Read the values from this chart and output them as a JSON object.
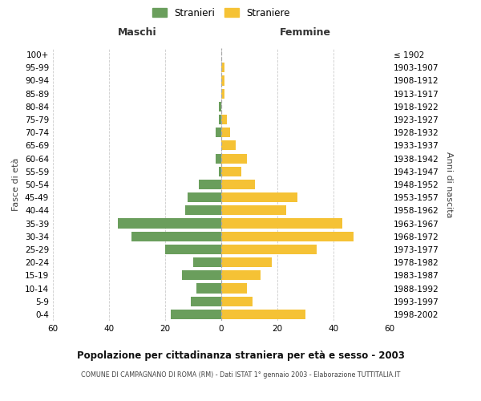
{
  "age_groups": [
    "0-4",
    "5-9",
    "10-14",
    "15-19",
    "20-24",
    "25-29",
    "30-34",
    "35-39",
    "40-44",
    "45-49",
    "50-54",
    "55-59",
    "60-64",
    "65-69",
    "70-74",
    "75-79",
    "80-84",
    "85-89",
    "90-94",
    "95-99",
    "100+"
  ],
  "birth_years": [
    "1998-2002",
    "1993-1997",
    "1988-1992",
    "1983-1987",
    "1978-1982",
    "1973-1977",
    "1968-1972",
    "1963-1967",
    "1958-1962",
    "1953-1957",
    "1948-1952",
    "1943-1947",
    "1938-1942",
    "1933-1937",
    "1928-1932",
    "1923-1927",
    "1918-1922",
    "1913-1917",
    "1908-1912",
    "1903-1907",
    "≤ 1902"
  ],
  "maschi": [
    18,
    11,
    9,
    14,
    10,
    20,
    32,
    37,
    13,
    12,
    8,
    1,
    2,
    0,
    2,
    1,
    1,
    0,
    0,
    0,
    0
  ],
  "femmine": [
    30,
    11,
    9,
    14,
    18,
    34,
    47,
    43,
    23,
    27,
    12,
    7,
    9,
    5,
    3,
    2,
    0,
    1,
    1,
    1,
    0
  ],
  "male_color": "#6a9e5c",
  "female_color": "#f5c235",
  "title": "Popolazione per cittadinanza straniera per età e sesso - 2003",
  "subtitle": "COMUNE DI CAMPAGNANO DI ROMA (RM) - Dati ISTAT 1° gennaio 2003 - Elaborazione TUTTITALIA.IT",
  "xlabel_left": "Maschi",
  "xlabel_right": "Femmine",
  "ylabel_left": "Fasce di età",
  "ylabel_right": "Anni di nascita",
  "legend_male": "Stranieri",
  "legend_female": "Straniere",
  "xlim": 60,
  "background_color": "#ffffff",
  "grid_color": "#cccccc"
}
